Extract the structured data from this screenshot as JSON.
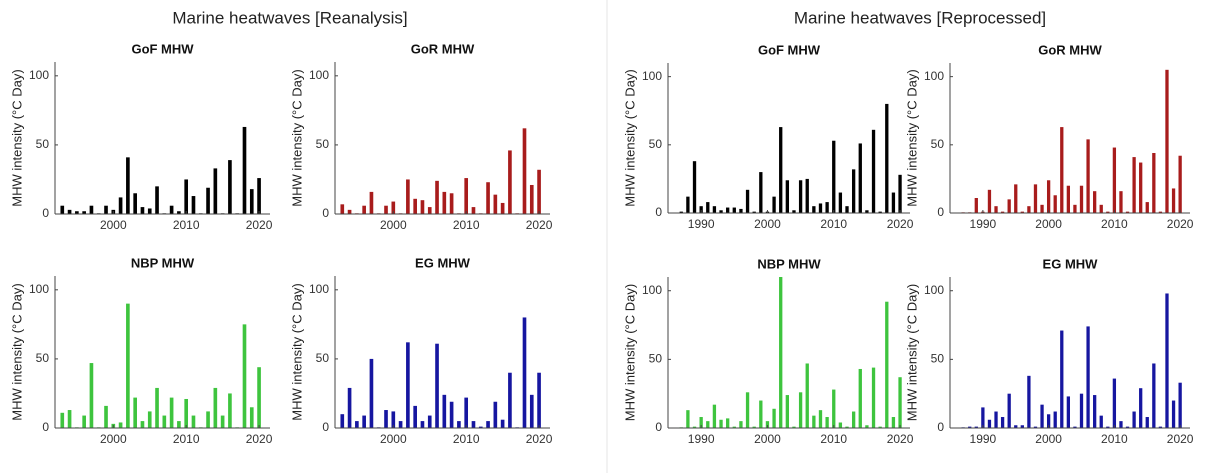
{
  "figures": [
    {
      "title": "Marine heatwaves [Reanalysis]"
    },
    {
      "title": "Marine heatwaves [Reprocessed]"
    }
  ],
  "chart_data": [
    {
      "type": "bar",
      "title": "GoF MHW",
      "ylabel": "MHW intensity (°C Day)",
      "color": "#000000",
      "x": [
        1993,
        1994,
        1995,
        1996,
        1997,
        1998,
        1999,
        2000,
        2001,
        2002,
        2003,
        2004,
        2005,
        2006,
        2007,
        2008,
        2009,
        2010,
        2011,
        2012,
        2013,
        2014,
        2015,
        2016,
        2017,
        2018,
        2019,
        2020
      ],
      "values": [
        6,
        3,
        2,
        2,
        6,
        0.5,
        6,
        3,
        12,
        41,
        15,
        5,
        4,
        20,
        0.5,
        6,
        2,
        25,
        13,
        0.5,
        19,
        33,
        0.5,
        39,
        0.5,
        63,
        18,
        26
      ],
      "xlim": [
        1992,
        2021.5
      ],
      "xticks": [
        2000,
        2010,
        2020
      ],
      "ylim": [
        0,
        110
      ],
      "yticks": [
        0,
        50,
        100
      ]
    },
    {
      "type": "bar",
      "title": "GoR MHW",
      "ylabel": "MHW intensity (°C Day)",
      "color": "#a81c1c",
      "x": [
        1993,
        1994,
        1995,
        1996,
        1997,
        1998,
        1999,
        2000,
        2001,
        2002,
        2003,
        2004,
        2005,
        2006,
        2007,
        2008,
        2009,
        2010,
        2011,
        2012,
        2013,
        2014,
        2015,
        2016,
        2017,
        2018,
        2019,
        2020
      ],
      "values": [
        7,
        3,
        0.5,
        6,
        16,
        0.5,
        6,
        9,
        0.5,
        25,
        11,
        10,
        5,
        24,
        16,
        15,
        0.5,
        26,
        5,
        0.5,
        23,
        14,
        8,
        46,
        0.5,
        62,
        21,
        32
      ],
      "xlim": [
        1992,
        2021.5
      ],
      "xticks": [
        2000,
        2010,
        2020
      ],
      "ylim": [
        0,
        110
      ],
      "yticks": [
        0,
        50,
        100
      ]
    },
    {
      "type": "bar",
      "title": "NBP MHW",
      "ylabel": "MHW intensity (°C Day)",
      "color": "#3ec43e",
      "x": [
        1993,
        1994,
        1995,
        1996,
        1997,
        1998,
        1999,
        2000,
        2001,
        2002,
        2003,
        2004,
        2005,
        2006,
        2007,
        2008,
        2009,
        2010,
        2011,
        2012,
        2013,
        2014,
        2015,
        2016,
        2017,
        2018,
        2019,
        2020
      ],
      "values": [
        11,
        13,
        0.5,
        9,
        47,
        0.5,
        16,
        3,
        4,
        90,
        22,
        5,
        12,
        29,
        9,
        22,
        5,
        21,
        9,
        0.5,
        12,
        29,
        9,
        25,
        0.5,
        75,
        15,
        44
      ],
      "xlim": [
        1992,
        2021.5
      ],
      "xticks": [
        2000,
        2010,
        2020
      ],
      "ylim": [
        0,
        110
      ],
      "yticks": [
        0,
        50,
        100
      ]
    },
    {
      "type": "bar",
      "title": "EG MHW",
      "ylabel": "MHW intensity (°C Day)",
      "color": "#1616a0",
      "x": [
        1993,
        1994,
        1995,
        1996,
        1997,
        1998,
        1999,
        2000,
        2001,
        2002,
        2003,
        2004,
        2005,
        2006,
        2007,
        2008,
        2009,
        2010,
        2011,
        2012,
        2013,
        2014,
        2015,
        2016,
        2017,
        2018,
        2019,
        2020
      ],
      "values": [
        10,
        29,
        5,
        9,
        50,
        0.5,
        13,
        12,
        5,
        62,
        16,
        5,
        9,
        61,
        24,
        19,
        5,
        22,
        5,
        1,
        5,
        19,
        6,
        40,
        0.5,
        80,
        24,
        40
      ],
      "xlim": [
        1992,
        2021.5
      ],
      "xticks": [
        2000,
        2010,
        2020
      ],
      "ylim": [
        0,
        110
      ],
      "yticks": [
        0,
        50,
        100
      ]
    },
    {
      "type": "bar",
      "title": "GoF MHW",
      "ylabel": "MHW intensity (°C Day)",
      "color": "#000000",
      "x": [
        1987,
        1988,
        1989,
        1990,
        1991,
        1992,
        1993,
        1994,
        1995,
        1996,
        1997,
        1998,
        1999,
        2000,
        2001,
        2002,
        2003,
        2004,
        2005,
        2006,
        2007,
        2008,
        2009,
        2010,
        2011,
        2012,
        2013,
        2014,
        2015,
        2016,
        2017,
        2018,
        2019,
        2020
      ],
      "values": [
        1,
        12,
        38,
        5,
        8,
        5,
        2,
        4,
        4,
        3,
        17,
        1,
        30,
        1,
        12,
        63,
        24,
        2,
        24,
        25,
        5,
        7,
        8,
        53,
        15,
        5,
        32,
        51,
        2,
        61,
        1,
        80,
        15,
        28
      ],
      "xlim": [
        1985,
        2021.5
      ],
      "xticks": [
        1990,
        2000,
        2010,
        2020
      ],
      "ylim": [
        0,
        110
      ],
      "yticks": [
        0,
        50,
        100
      ]
    },
    {
      "type": "bar",
      "title": "GoR MHW",
      "ylabel": "MHW intensity (°C Day)",
      "color": "#a81c1c",
      "x": [
        1987,
        1988,
        1989,
        1990,
        1991,
        1992,
        1993,
        1994,
        1995,
        1996,
        1997,
        1998,
        1999,
        2000,
        2001,
        2002,
        2003,
        2004,
        2005,
        2006,
        2007,
        2008,
        2009,
        2010,
        2011,
        2012,
        2013,
        2014,
        2015,
        2016,
        2017,
        2018,
        2019,
        2020
      ],
      "values": [
        0.5,
        0.5,
        11,
        1,
        17,
        5,
        1,
        10,
        21,
        1,
        5,
        21,
        6,
        24,
        13,
        63,
        20,
        6,
        20,
        54,
        16,
        6,
        1,
        48,
        16,
        1,
        41,
        37,
        8,
        44,
        1,
        105,
        18,
        42
      ],
      "xlim": [
        1985,
        2021.5
      ],
      "xticks": [
        1990,
        2000,
        2010,
        2020
      ],
      "ylim": [
        0,
        110
      ],
      "yticks": [
        0,
        50,
        100
      ]
    },
    {
      "type": "bar",
      "title": "NBP MHW",
      "ylabel": "MHW intensity (°C Day)",
      "color": "#3ec43e",
      "x": [
        1987,
        1988,
        1989,
        1990,
        1991,
        1992,
        1993,
        1994,
        1995,
        1996,
        1997,
        1998,
        1999,
        2000,
        2001,
        2002,
        2003,
        2004,
        2005,
        2006,
        2007,
        2008,
        2009,
        2010,
        2011,
        2012,
        2013,
        2014,
        2015,
        2016,
        2017,
        2018,
        2019,
        2020
      ],
      "values": [
        0.5,
        13,
        1,
        8,
        5,
        17,
        6,
        7,
        1,
        5,
        26,
        1,
        20,
        5,
        14,
        110,
        24,
        1,
        26,
        47,
        9,
        13,
        8,
        28,
        4,
        1,
        12,
        43,
        2,
        44,
        1,
        92,
        8,
        37
      ],
      "xlim": [
        1985,
        2021.5
      ],
      "xticks": [
        1990,
        2000,
        2010,
        2020
      ],
      "ylim": [
        0,
        110
      ],
      "yticks": [
        0,
        50,
        100
      ]
    },
    {
      "type": "bar",
      "title": "EG MHW",
      "ylabel": "MHW intensity (°C Day)",
      "color": "#1616a0",
      "x": [
        1987,
        1988,
        1989,
        1990,
        1991,
        1992,
        1993,
        1994,
        1995,
        1996,
        1997,
        1998,
        1999,
        2000,
        2001,
        2002,
        2003,
        2004,
        2005,
        2006,
        2007,
        2008,
        2009,
        2010,
        2011,
        2012,
        2013,
        2014,
        2015,
        2016,
        2017,
        2018,
        2019,
        2020
      ],
      "values": [
        0.5,
        1,
        1,
        15,
        6,
        12,
        8,
        25,
        2,
        2,
        38,
        1,
        17,
        10,
        12,
        71,
        23,
        1,
        25,
        74,
        24,
        9,
        1,
        36,
        5,
        1,
        12,
        29,
        8,
        47,
        1,
        98,
        20,
        33
      ],
      "xlim": [
        1985,
        2021.5
      ],
      "xticks": [
        1990,
        2000,
        2010,
        2020
      ],
      "ylim": [
        0,
        110
      ],
      "yticks": [
        0,
        50,
        100
      ]
    }
  ]
}
